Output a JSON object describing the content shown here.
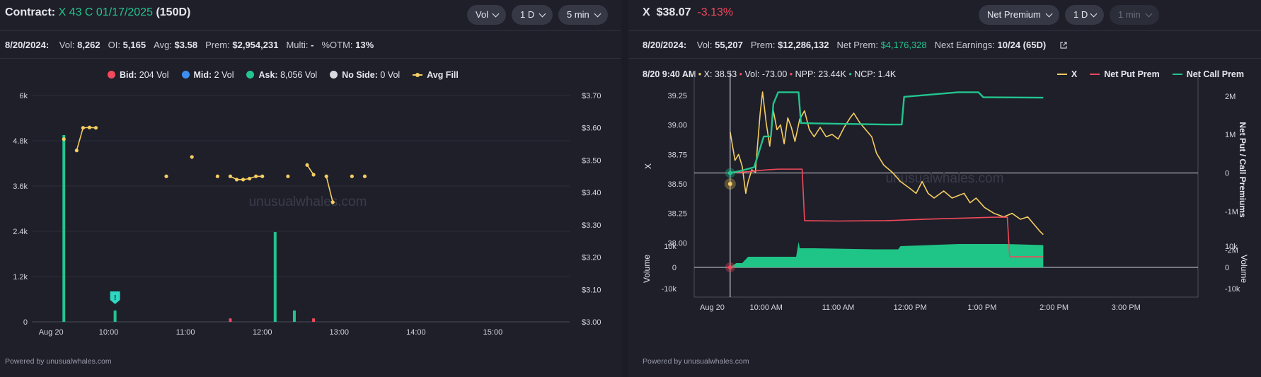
{
  "left_panel": {
    "header": {
      "label": "Contract:",
      "contract": "X 43 C 01/17/2025",
      "dte": "(150D)",
      "controls": [
        {
          "label": "Vol",
          "x": 660,
          "w": 55
        },
        {
          "label": "1 D",
          "x": 723,
          "w": 58
        },
        {
          "label": "5 min",
          "x": 789,
          "w": 70
        }
      ]
    },
    "stats": {
      "date": "8/20/2024:",
      "items": [
        {
          "label": "Vol:",
          "value": "8,262"
        },
        {
          "label": "OI:",
          "value": "5,165"
        },
        {
          "label": "Avg:",
          "value": "$3.58"
        },
        {
          "label": "Prem:",
          "value": "$2,954,231"
        },
        {
          "label": "Multi:",
          "value": "-"
        },
        {
          "label": "%OTM:",
          "value": "13%"
        }
      ]
    },
    "legend": [
      {
        "label": "Bid:",
        "value": "204 Vol",
        "color": "#f2495c",
        "type": "dot"
      },
      {
        "label": "Mid:",
        "value": "2 Vol",
        "color": "#3d8ef0",
        "type": "dot"
      },
      {
        "label": "Ask:",
        "value": "8,056 Vol",
        "color": "#23c48e",
        "type": "dot"
      },
      {
        "label": "No Side:",
        "value": "0 Vol",
        "color": "#d9d9e0",
        "type": "dot"
      },
      {
        "label": "Avg Fill",
        "value": "",
        "color": "#f5cd61",
        "type": "line"
      }
    ],
    "watermark": "unusualwhales.com",
    "footer": "Powered by unusualwhales.com"
  },
  "right_panel": {
    "header": {
      "ticker": "X",
      "price": "$38.07",
      "change": "-3.13%",
      "controls": [
        {
          "label": "Net Premium",
          "x": 495,
          "w": 114,
          "disabled": false
        },
        {
          "label": "1 D",
          "x": 617,
          "w": 55,
          "disabled": false
        },
        {
          "label": "1 min",
          "x": 680,
          "w": 70,
          "disabled": true
        }
      ]
    },
    "stats": {
      "date": "8/20/2024:",
      "items": [
        {
          "label": "Vol:",
          "value": "55,207",
          "color": ""
        },
        {
          "label": "Prem:",
          "value": "$12,286,132",
          "color": ""
        },
        {
          "label": "Net Prem:",
          "value": "$4,176,328",
          "color": "#23c48e"
        },
        {
          "label": "Next Earnings:",
          "value": "10/24 (65D)",
          "color": ""
        }
      ]
    },
    "tooltip": {
      "time": "8/20 9:40 AM",
      "items": [
        {
          "text": "X: 38.53",
          "color": "#f5cd61"
        },
        {
          "text": "Vol: -73.00",
          "color": "#f2495c"
        },
        {
          "text": "NPP: 23.44K",
          "color": "#f2495c"
        },
        {
          "text": "NCP: 1.4K",
          "color": "#23c48e"
        }
      ]
    },
    "legend": [
      {
        "label": "X",
        "color": "#f5cd61"
      },
      {
        "label": "Net Put Prem",
        "color": "#f2495c"
      },
      {
        "label": "Net Call Prem",
        "color": "#23c48e"
      }
    ],
    "watermark": "unusualwhales.com",
    "footer": "Powered by unusualwhales.com"
  },
  "chart_data": [
    {
      "type": "bar",
      "title": "",
      "x_tick_labels": [
        "Aug 20",
        "10:00",
        "11:00",
        "12:00",
        "13:00",
        "14:00",
        "15:00"
      ],
      "x_domain_minutes": [
        540,
        960
      ],
      "x_ticks_minutes": [
        555,
        600,
        660,
        720,
        780,
        840,
        900
      ],
      "y_left": {
        "label": "",
        "min": 0,
        "max": 6000,
        "ticks": [
          0,
          1200,
          2400,
          3600,
          4800,
          6000
        ],
        "tick_labels": [
          "0",
          "1.2k",
          "2.4k",
          "3.6k",
          "4.8k",
          "6k"
        ]
      },
      "y_right": {
        "label": "",
        "min": 3.0,
        "max": 3.7,
        "ticks": [
          3.0,
          3.1,
          3.2,
          3.3,
          3.4,
          3.5,
          3.6,
          3.7
        ],
        "tick_labels": [
          "$3.00",
          "$3.10",
          "$3.20",
          "$3.30",
          "$3.40",
          "$3.50",
          "$3.60",
          "$3.70"
        ]
      },
      "series": [
        {
          "name": "Ask",
          "color": "#23c48e",
          "points": [
            [
              565,
              4950
            ],
            [
              605,
              300
            ],
            [
              730,
              2380
            ],
            [
              745,
              300
            ]
          ]
        },
        {
          "name": "Bid",
          "color": "#f2495c",
          "points": [
            [
              695,
              90
            ],
            [
              760,
              90
            ]
          ]
        }
      ],
      "avg_fill": {
        "name": "Avg Fill",
        "color": "#f5cd61",
        "segments": [
          [
            [
              565,
              3.565
            ]
          ],
          [
            [
              575,
              3.53
            ],
            [
              580,
              3.6
            ],
            [
              585,
              3.601
            ],
            [
              590,
              3.6
            ]
          ],
          [
            [
              645,
              3.45
            ]
          ],
          [
            [
              665,
              3.51
            ]
          ],
          [
            [
              685,
              3.45
            ]
          ],
          [
            [
              695,
              3.45
            ],
            [
              700,
              3.44
            ],
            [
              705,
              3.44
            ],
            [
              710,
              3.443
            ],
            [
              715,
              3.45
            ],
            [
              720,
              3.45
            ]
          ],
          [
            [
              740,
              3.45
            ]
          ],
          [
            [
              755,
              3.485
            ],
            [
              760,
              3.455
            ]
          ],
          [
            [
              770,
              3.45
            ],
            [
              775,
              3.37
            ]
          ],
          [
            [
              790,
              3.45
            ]
          ],
          [
            [
              800,
              3.45
            ]
          ]
        ]
      },
      "annotation": {
        "x": 605,
        "text": "!"
      }
    },
    {
      "type": "line",
      "title": "",
      "x_tick_labels": [
        "Aug 20",
        "10:00 AM",
        "11:00 AM",
        "12:00 PM",
        "1:00 PM",
        "2:00 PM",
        "3:00 PM"
      ],
      "x_domain_minutes": [
        540,
        960
      ],
      "x_ticks_minutes": [
        555,
        600,
        660,
        720,
        780,
        840,
        900
      ],
      "y_left": {
        "label": "X",
        "min": 37.96,
        "max": 39.4,
        "ticks": [
          38.0,
          38.25,
          38.5,
          38.75,
          39.0,
          39.25
        ],
        "tick_labels": [
          "38.00",
          "38.25",
          "38.50",
          "38.75",
          "39.00",
          "39.25"
        ]
      },
      "y_right": {
        "label": "Net Put / Call Premiums",
        "min": -2400000,
        "max": 2200000,
        "ticks": [
          -2000000,
          -1000000,
          0,
          1000000,
          2000000
        ],
        "tick_labels": [
          "-2M",
          "-1M",
          "0",
          "1M",
          "2M"
        ]
      },
      "volume_axis": {
        "label": "Volume",
        "min": -10000,
        "max": 10000,
        "ticks": [
          -10000,
          0,
          10000
        ],
        "tick_labels": [
          "-10k",
          "0",
          "10k"
        ]
      },
      "crosshair_minutes": 570,
      "series": [
        {
          "name": "X",
          "color": "#f5cd61",
          "points": [
            [
              570,
              38.94
            ],
            [
              574,
              38.7
            ],
            [
              577,
              38.75
            ],
            [
              580,
              38.65
            ],
            [
              583,
              38.42
            ],
            [
              585,
              38.52
            ],
            [
              588,
              38.62
            ],
            [
              591,
              38.6
            ],
            [
              593,
              38.85
            ],
            [
              595,
              39.1
            ],
            [
              597,
              39.28
            ],
            [
              600,
              39.02
            ],
            [
              603,
              38.82
            ],
            [
              606,
              39.12
            ],
            [
              609,
              38.96
            ],
            [
              612,
              39.0
            ],
            [
              615,
              38.84
            ],
            [
              618,
              39.06
            ],
            [
              621,
              38.98
            ],
            [
              624,
              38.86
            ],
            [
              628,
              39.05
            ],
            [
              632,
              39.12
            ],
            [
              636,
              38.96
            ],
            [
              640,
              38.9
            ],
            [
              645,
              38.98
            ],
            [
              650,
              38.9
            ],
            [
              655,
              38.92
            ],
            [
              660,
              38.88
            ],
            [
              665,
              38.98
            ],
            [
              670,
              39.06
            ],
            [
              673,
              39.1
            ],
            [
              678,
              39.02
            ],
            [
              683,
              38.96
            ],
            [
              688,
              38.9
            ],
            [
              692,
              38.76
            ],
            [
              698,
              38.66
            ],
            [
              705,
              38.6
            ],
            [
              712,
              38.52
            ],
            [
              720,
              38.46
            ],
            [
              725,
              38.42
            ],
            [
              730,
              38.52
            ],
            [
              735,
              38.42
            ],
            [
              740,
              38.38
            ],
            [
              748,
              38.44
            ],
            [
              755,
              38.38
            ],
            [
              760,
              38.4
            ],
            [
              765,
              38.42
            ],
            [
              770,
              38.34
            ],
            [
              775,
              38.38
            ],
            [
              782,
              38.3
            ],
            [
              790,
              38.25
            ],
            [
              798,
              38.22
            ],
            [
              805,
              38.25
            ],
            [
              812,
              38.2
            ],
            [
              818,
              38.22
            ],
            [
              823,
              38.16
            ],
            [
              828,
              38.1
            ],
            [
              831,
              38.07
            ]
          ]
        },
        {
          "name": "Net Put Prem",
          "color": "#f2495c",
          "points": [
            [
              570,
              0
            ],
            [
              580,
              20000
            ],
            [
              600,
              80000
            ],
            [
              610,
              100000
            ],
            [
              630,
              100000
            ],
            [
              632,
              -1240000
            ],
            [
              660,
              -1250000
            ],
            [
              700,
              -1240000
            ],
            [
              735,
              -1200000
            ],
            [
              790,
              -1150000
            ],
            [
              801,
              -1150000
            ],
            [
              803,
              -2180000
            ],
            [
              831,
              -2180000
            ]
          ]
        },
        {
          "name": "Net Call Prem",
          "color": "#23c48e",
          "points": [
            [
              570,
              0
            ],
            [
              578,
              50000
            ],
            [
              590,
              150000
            ],
            [
              598,
              950000
            ],
            [
              604,
              950000
            ],
            [
              606,
              1800000
            ],
            [
              610,
              2100000
            ],
            [
              627,
              2100000
            ],
            [
              629,
              1300000
            ],
            [
              640,
              1290000
            ],
            [
              700,
              1260000
            ],
            [
              713,
              1260000
            ],
            [
              715,
              1980000
            ],
            [
              760,
              2100000
            ],
            [
              777,
              2100000
            ],
            [
              781,
              1970000
            ],
            [
              831,
              1960000
            ]
          ]
        }
      ],
      "volume": {
        "name": "Volume",
        "color": "#1fc487",
        "points": [
          [
            570,
            0
          ],
          [
            575,
            2000
          ],
          [
            580,
            2000
          ],
          [
            585,
            5000
          ],
          [
            625,
            5000
          ],
          [
            627,
            12000
          ],
          [
            628,
            9000
          ],
          [
            640,
            9000
          ],
          [
            690,
            8500
          ],
          [
            710,
            8500
          ],
          [
            712,
            10000
          ],
          [
            760,
            11000
          ],
          [
            800,
            11000
          ],
          [
            831,
            10500
          ]
        ]
      }
    }
  ]
}
